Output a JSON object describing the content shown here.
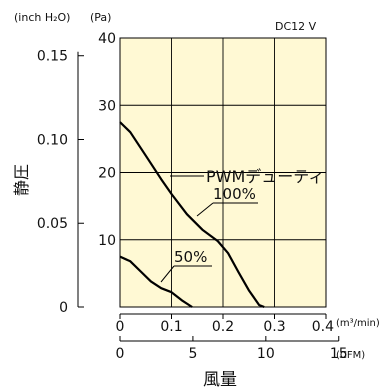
{
  "chart_data": {
    "type": "line",
    "annotation_corner": "DC12 V",
    "unit_inch": "(inch H₂O)",
    "unit_pa": "(Pa)",
    "ylabel": "静圧",
    "xlabel": "風量",
    "x_unit_top": "(m³/min)",
    "x_unit_bottom": "(CFM)",
    "series_title": "PWMデューティ",
    "x_range": [
      0,
      0.4
    ],
    "y_range": [
      0,
      40
    ],
    "x_ticks": [
      0,
      0.1,
      0.2,
      0.3,
      0.4
    ],
    "x_tick_labels": [
      "0",
      "0.1",
      "0.2",
      "0.3",
      "0.4"
    ],
    "y_ticks": [
      0,
      10,
      20,
      30,
      40
    ],
    "y_tick_labels": [
      "",
      "10",
      "20",
      "30",
      "40"
    ],
    "inch_ticks": [
      0,
      0.05,
      0.1,
      0.15
    ],
    "inch_tick_labels": [
      "0",
      "0.05",
      "0.10",
      "0.15"
    ],
    "cfm_ticks": [
      0,
      5,
      10,
      15
    ],
    "cfm_tick_labels": [
      "0",
      "5",
      "10",
      "15"
    ],
    "grid": true,
    "plot_bg": "#fff9d4",
    "line_color": "#000000",
    "series": [
      {
        "name": "100%",
        "x": [
          0,
          0.02,
          0.05,
          0.08,
          0.1,
          0.13,
          0.16,
          0.19,
          0.21,
          0.23,
          0.25,
          0.27,
          0.28
        ],
        "values": [
          27.5,
          26,
          22.5,
          19,
          16.8,
          13.8,
          11.5,
          9.8,
          8,
          5.2,
          2.5,
          0.3,
          0
        ]
      },
      {
        "name": "50%",
        "x": [
          0,
          0.02,
          0.04,
          0.06,
          0.08,
          0.1,
          0.12,
          0.14
        ],
        "values": [
          7.5,
          6.8,
          5.3,
          3.8,
          2.8,
          2.2,
          1,
          0
        ]
      }
    ]
  }
}
